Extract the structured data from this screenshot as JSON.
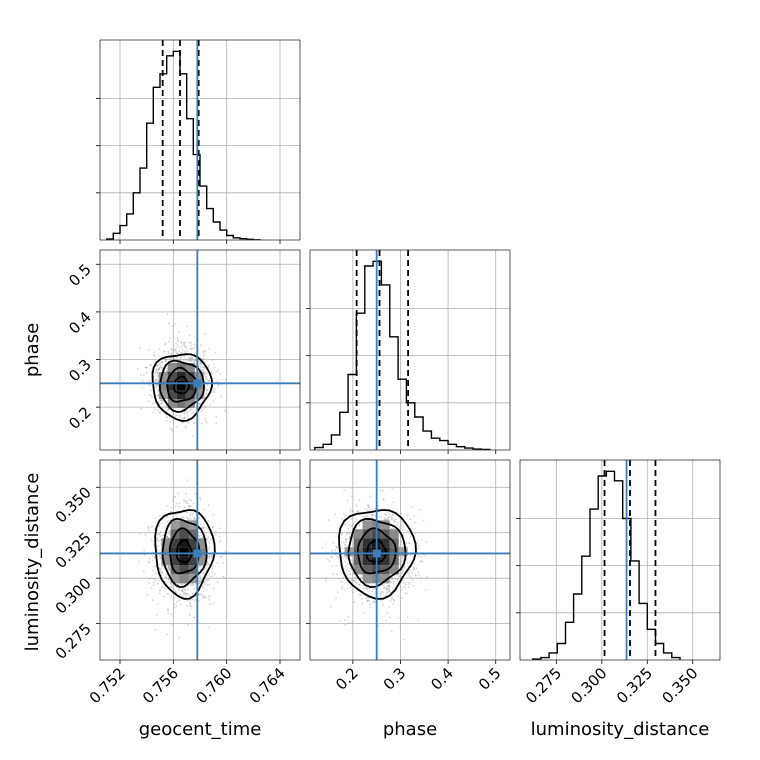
{
  "chart_data": {
    "type": "corner",
    "parameters": [
      {
        "name": "geocent_time",
        "label": "geocent_time",
        "range": [
          0.7505,
          0.7655
        ],
        "ticks": [
          0.752,
          0.756,
          0.76,
          0.764
        ],
        "tick_labels": [
          "0.752",
          "0.756",
          "0.760",
          "0.764"
        ],
        "injection": 0.7578
      },
      {
        "name": "phase",
        "label": "phase",
        "range": [
          0.11,
          0.53
        ],
        "ticks": [
          0.2,
          0.3,
          0.4,
          0.5
        ],
        "tick_labels": [
          "0.2",
          "0.3",
          "0.4",
          "0.5"
        ],
        "injection": 0.25
      },
      {
        "name": "luminosity_distance",
        "label": "luminosity_distance",
        "range": [
          0.255,
          0.365
        ],
        "ticks": [
          0.275,
          0.3,
          0.325,
          0.35
        ],
        "tick_labels": [
          "0.275",
          "0.300",
          "0.325",
          "0.350"
        ],
        "injection": 0.3136
      }
    ],
    "histograms": [
      {
        "parameter": "geocent_time",
        "bin_start": 0.751,
        "bin_width": 0.0005,
        "counts": [
          0.2,
          1.5,
          3.2,
          5.8,
          10.5,
          16,
          26,
          34,
          37,
          41,
          42,
          37,
          27,
          19,
          12,
          7,
          4,
          2.2,
          1,
          0.5,
          0.3,
          0.15,
          0.05
        ],
        "quantiles": [
          0.7552,
          0.7565,
          0.7579
        ]
      },
      {
        "parameter": "phase",
        "bin_start": 0.12,
        "bin_width": 0.0175,
        "counts": [
          0.5,
          1.2,
          3.2,
          8,
          16,
          29,
          39,
          40,
          35,
          24,
          15,
          10,
          7,
          4,
          2.5,
          2,
          1.2,
          0.7,
          0.4,
          0.2,
          0.1
        ],
        "quantiles": [
          0.208,
          0.256,
          0.316
        ]
      },
      {
        "parameter": "luminosity_distance",
        "bin_start": 0.262,
        "bin_width": 0.0045,
        "counts": [
          0.2,
          0.5,
          1.5,
          3.5,
          8,
          14,
          22,
          32,
          39,
          40,
          38,
          30,
          21,
          12,
          6.5,
          3.5,
          1.5,
          0.5
        ],
        "quantiles": [
          0.3015,
          0.3155,
          0.3295
        ]
      }
    ],
    "scatter_panels": [
      {
        "x": "geocent_time",
        "y": "phase",
        "center": [
          0.7566,
          0.2455
        ],
        "spread": [
          0.00105,
          0.033
        ],
        "contour_levels": [
          "0.5-sigma",
          "1-sigma",
          "1.5-sigma",
          "2-sigma"
        ]
      },
      {
        "x": "geocent_time",
        "y": "luminosity_distance",
        "center": [
          0.7568,
          0.3145
        ],
        "spread": [
          0.00105,
          0.0115
        ],
        "contour_levels": [
          "0.5-sigma",
          "1-sigma",
          "1.5-sigma",
          "2-sigma"
        ]
      },
      {
        "x": "phase",
        "y": "luminosity_distance",
        "center": [
          0.249,
          0.3145
        ],
        "spread": [
          0.038,
          0.0115
        ],
        "contour_levels": [
          "0.5-sigma",
          "1-sigma",
          "1.5-sigma",
          "2-sigma"
        ]
      }
    ],
    "colors": {
      "injection": "#3a7db8",
      "histogram": "#000000",
      "quantile": "#000000",
      "points": "#8c8c8c"
    },
    "grid": true
  }
}
